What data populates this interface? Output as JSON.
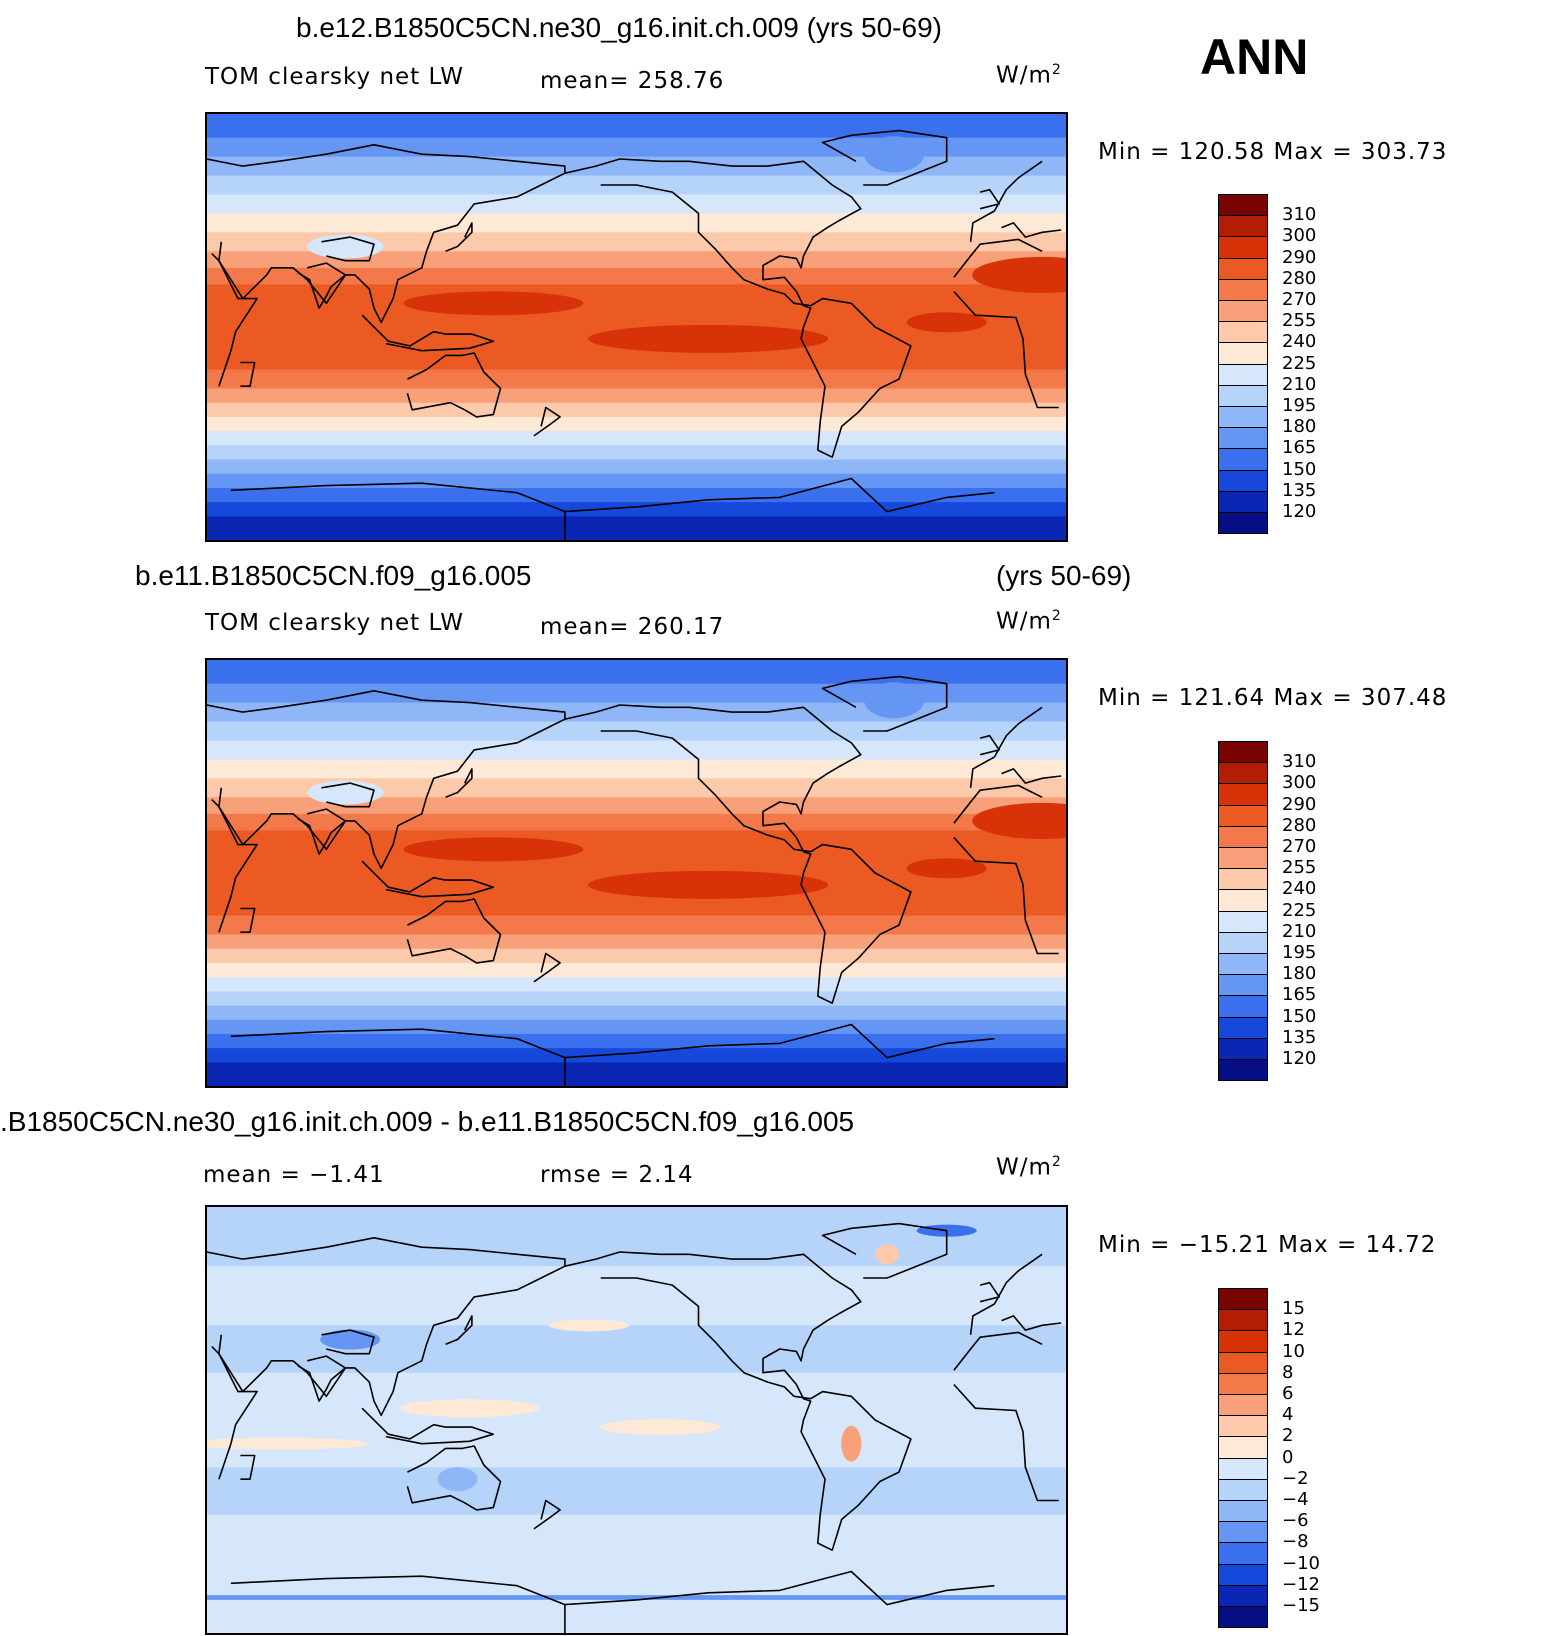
{
  "season": "ANN",
  "chart_data": [
    {
      "type": "heatmap",
      "title": "b.e12.B1850C5CN.ne30_g16.init.ch.009 (yrs 50-69)",
      "variable": "TOM clearsky net LW",
      "mean_text": "mean=  258.76",
      "units": "W/m",
      "units_exp": "2",
      "minmax_text": "Min  =  120.58  Max  =  303.73",
      "levels": [
        "310",
        "300",
        "290",
        "280",
        "270",
        "255",
        "240",
        "225",
        "210",
        "195",
        "180",
        "165",
        "150",
        "135",
        "120"
      ],
      "colors": [
        "#7a0403",
        "#b41d05",
        "#d83308",
        "#ec5a23",
        "#f3794b",
        "#f8a079",
        "#fcc9ab",
        "#fee9d7",
        "#d6e7fb",
        "#b6d3fa",
        "#8fb7f7",
        "#6596f4",
        "#3a70ee",
        "#1748dc",
        "#0a26b2",
        "#060e83"
      ],
      "field": "equatorial maximum decreasing poleward; minima over Antarctica and Tibet"
    },
    {
      "type": "heatmap",
      "title_left": "b.e11.B1850C5CN.f09_g16.005",
      "title_right": "(yrs 50-69)",
      "variable": "TOM clearsky net LW",
      "mean_text": "mean=  260.17",
      "units": "W/m",
      "units_exp": "2",
      "minmax_text": "Min  =  121.64  Max  =  307.48",
      "levels": [
        "310",
        "300",
        "290",
        "280",
        "270",
        "255",
        "240",
        "225",
        "210",
        "195",
        "180",
        "165",
        "150",
        "135",
        "120"
      ],
      "colors": [
        "#7a0403",
        "#b41d05",
        "#d83308",
        "#ec5a23",
        "#f3794b",
        "#f8a079",
        "#fcc9ab",
        "#fee9d7",
        "#d6e7fb",
        "#b6d3fa",
        "#8fb7f7",
        "#6596f4",
        "#3a70ee",
        "#1748dc",
        "#0a26b2",
        "#060e83"
      ],
      "field": "equatorial maximum decreasing poleward; minima over Antarctica and Tibet"
    },
    {
      "type": "heatmap",
      "title": ".B1850C5CN.ne30_g16.init.ch.009 - b.e11.B1850C5CN.f09_g16.005",
      "mean_text": "mean =    −1.41",
      "rmse_text": "rmse =     2.14",
      "units": "W/m",
      "units_exp": "2",
      "minmax_text": "Min  =  −15.21  Max  =    14.72",
      "levels": [
        "15",
        "12",
        "10",
        "8",
        "6",
        "4",
        "2",
        "0",
        "−2",
        "−4",
        "−6",
        "−8",
        "−10",
        "−12",
        "−15"
      ],
      "colors": [
        "#7a0403",
        "#b41d05",
        "#d83308",
        "#ec5a23",
        "#f3794b",
        "#f8a079",
        "#fcc9ab",
        "#fee9d7",
        "#d6e7fb",
        "#b6d3fa",
        "#8fb7f7",
        "#6596f4",
        "#3a70ee",
        "#1748dc",
        "#0a26b2",
        "#060e83"
      ],
      "field": "mostly weak negative differences with scattered positive patches"
    }
  ]
}
